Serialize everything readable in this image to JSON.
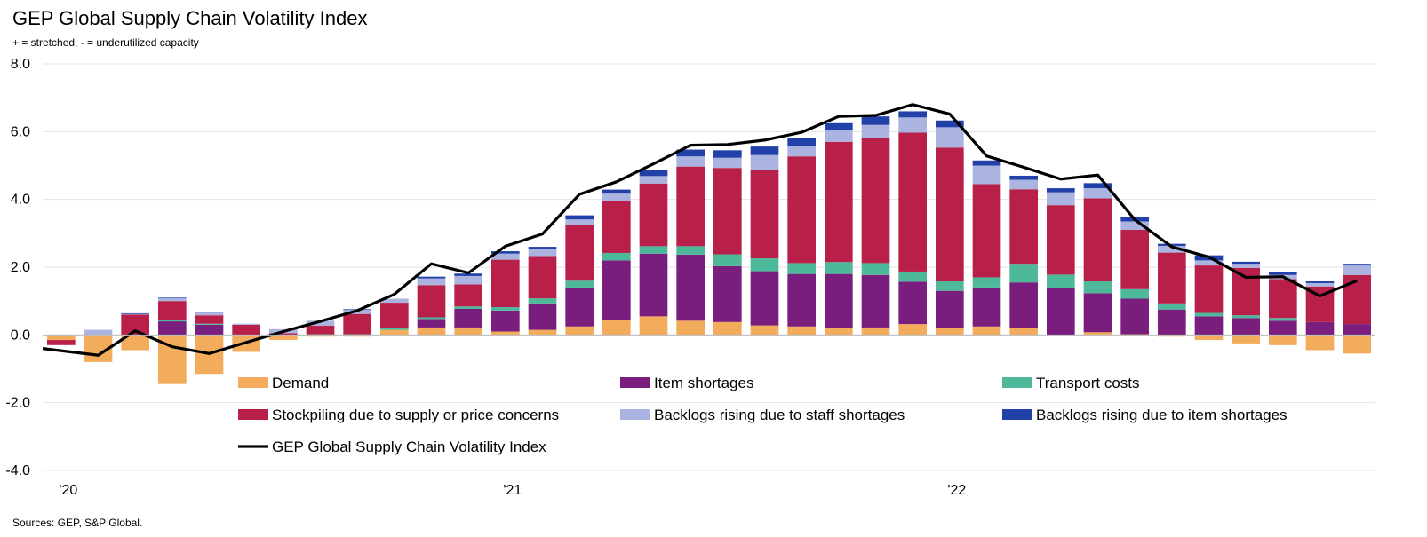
{
  "header": {
    "title": "GEP Global Supply Chain Volatility Index",
    "subtitle": "+ = stretched, - = underutilized capacity"
  },
  "footer": {
    "source": "Sources: GEP, S&P Global."
  },
  "chart_data": {
    "type": "bar",
    "stacked": true,
    "title": "GEP Global Supply Chain Volatility Index",
    "subtitle": "+ = stretched, - = underutilized capacity",
    "xlabel": "",
    "ylabel": "",
    "ylim": [
      -4.0,
      8.0
    ],
    "yticks": [
      -4.0,
      -2.0,
      0.0,
      2.0,
      4.0,
      6.0,
      8.0
    ],
    "ytick_labels": [
      "-4.0",
      "-2.0",
      "0.0",
      "2.0",
      "4.0",
      "6.0",
      "8.0"
    ],
    "grid": true,
    "legend_position": "bottom-inside",
    "categories": [
      "Jan-20",
      "Feb-20",
      "Mar-20",
      "Apr-20",
      "May-20",
      "Jun-20",
      "Jul-20",
      "Aug-20",
      "Sep-20",
      "Oct-20",
      "Nov-20",
      "Dec-20",
      "Jan-21",
      "Feb-21",
      "Mar-21",
      "Apr-21",
      "May-21",
      "Jun-21",
      "Jul-21",
      "Aug-21",
      "Sep-21",
      "Oct-21",
      "Nov-21",
      "Dec-21",
      "Jan-22",
      "Feb-22",
      "Mar-22",
      "Apr-22",
      "May-22",
      "Jun-22",
      "Jul-22",
      "Aug-22",
      "Sep-22",
      "Oct-22",
      "Nov-22",
      "Dec-22"
    ],
    "xtick_labels": [
      {
        "index": 0,
        "label": "'20"
      },
      {
        "index": 12,
        "label": "'21"
      },
      {
        "index": 24,
        "label": "'22"
      }
    ],
    "series": [
      {
        "name": "Demand",
        "color": "#F2AC5C",
        "values": [
          -0.15,
          -0.8,
          -0.45,
          -1.45,
          -1.15,
          -0.5,
          -0.15,
          -0.05,
          -0.05,
          0.15,
          0.22,
          0.22,
          0.1,
          0.15,
          0.25,
          0.45,
          0.55,
          0.42,
          0.38,
          0.28,
          0.25,
          0.2,
          0.22,
          0.32,
          0.2,
          0.25,
          0.2,
          0.0,
          0.08,
          0.02,
          -0.05,
          -0.15,
          -0.25,
          -0.3,
          -0.45,
          -0.55
        ]
      },
      {
        "name": "Item shortages",
        "color": "#7A1E7E",
        "values": [
          0.0,
          0.0,
          0.0,
          0.4,
          0.3,
          0.0,
          0.0,
          0.0,
          0.0,
          0.0,
          0.25,
          0.55,
          0.62,
          0.78,
          1.15,
          1.75,
          1.85,
          1.95,
          1.65,
          1.6,
          1.55,
          1.6,
          1.55,
          1.25,
          1.1,
          1.15,
          1.35,
          1.38,
          1.15,
          1.05,
          0.75,
          0.55,
          0.5,
          0.42,
          0.38,
          0.32
        ]
      },
      {
        "name": "Transport costs",
        "color": "#4DB89A",
        "values": [
          0.0,
          0.0,
          0.0,
          0.05,
          0.03,
          0.0,
          0.0,
          0.02,
          0.02,
          0.05,
          0.05,
          0.07,
          0.1,
          0.15,
          0.2,
          0.22,
          0.22,
          0.25,
          0.35,
          0.38,
          0.32,
          0.35,
          0.35,
          0.3,
          0.28,
          0.3,
          0.55,
          0.4,
          0.35,
          0.28,
          0.18,
          0.1,
          0.08,
          0.08,
          0.0,
          0.0
        ]
      },
      {
        "name": "Stockpiling due to supply or price concerns",
        "color": "#B8204A",
        "values": [
          -0.15,
          0.0,
          0.6,
          0.55,
          0.25,
          0.3,
          0.05,
          0.25,
          0.6,
          0.75,
          0.95,
          0.65,
          1.4,
          1.25,
          1.65,
          1.55,
          1.85,
          2.35,
          2.55,
          2.6,
          3.15,
          3.55,
          3.7,
          4.1,
          3.95,
          2.75,
          2.2,
          2.05,
          2.45,
          1.75,
          1.5,
          1.4,
          1.4,
          1.15,
          1.05,
          1.45
        ]
      },
      {
        "name": "Backlogs rising due to staff shortages",
        "color": "#ABB4E0",
        "values": [
          0.0,
          0.15,
          0.02,
          0.08,
          0.08,
          0.03,
          0.12,
          0.15,
          0.12,
          0.12,
          0.2,
          0.25,
          0.18,
          0.2,
          0.16,
          0.2,
          0.22,
          0.3,
          0.3,
          0.45,
          0.3,
          0.35,
          0.38,
          0.45,
          0.6,
          0.55,
          0.28,
          0.38,
          0.3,
          0.25,
          0.2,
          0.15,
          0.12,
          0.12,
          0.1,
          0.28
        ]
      },
      {
        "name": "Backlogs rising due to item shortages",
        "color": "#2140A8",
        "values": [
          0.0,
          0.0,
          0.02,
          0.02,
          0.02,
          0.0,
          0.0,
          0.0,
          0.02,
          0.0,
          0.05,
          0.07,
          0.07,
          0.07,
          0.12,
          0.12,
          0.18,
          0.2,
          0.22,
          0.25,
          0.25,
          0.2,
          0.25,
          0.18,
          0.2,
          0.15,
          0.12,
          0.12,
          0.15,
          0.14,
          0.06,
          0.15,
          0.06,
          0.08,
          0.05,
          0.05
        ]
      },
      {
        "name": "GEP Global Supply Chain Volatility Index",
        "type": "line",
        "color": "#000000",
        "values": [
          -0.4,
          -0.6,
          0.12,
          -0.35,
          -0.55,
          -0.22,
          0.1,
          0.4,
          0.72,
          1.2,
          2.1,
          1.83,
          2.62,
          2.98,
          4.15,
          4.52,
          5.05,
          5.6,
          5.62,
          5.75,
          5.98,
          6.45,
          6.48,
          6.8,
          6.52,
          5.28,
          4.95,
          4.6,
          4.72,
          3.4,
          2.6,
          2.3,
          1.7,
          1.72,
          1.15,
          1.6
        ]
      }
    ]
  }
}
